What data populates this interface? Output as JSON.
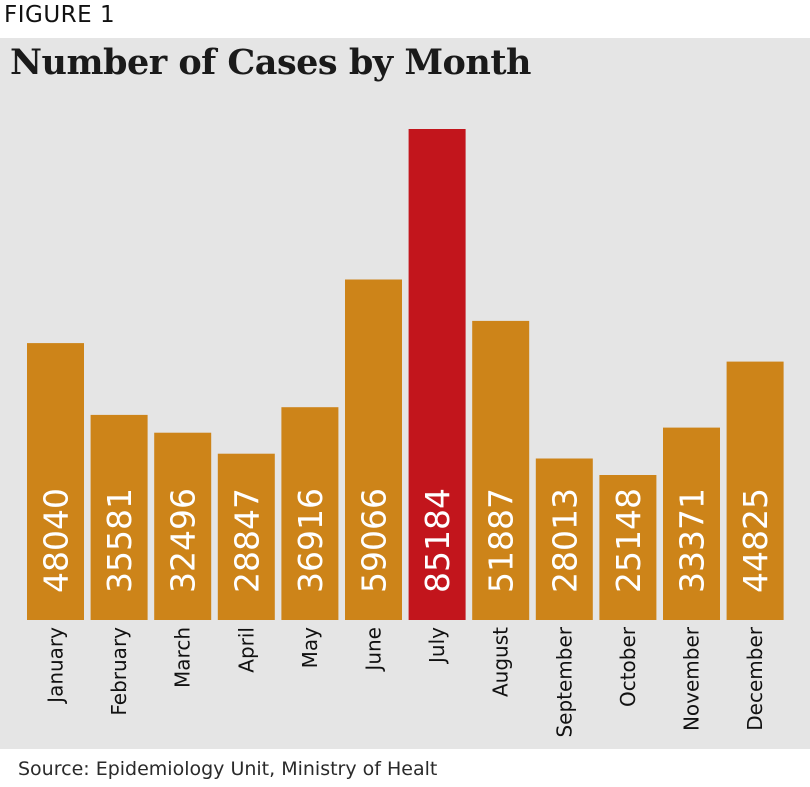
{
  "figure_label": "FIGURE 1",
  "source": "Source: Epidemiology Unit, Ministry of Healt",
  "colors": {
    "bar": "#cd8419",
    "highlight": "#c2151c",
    "panel_background": "#e5e5e5",
    "value_label": "#ffffff"
  },
  "chart_data": {
    "type": "bar",
    "title": "Number of Cases by Month",
    "xlabel": "",
    "ylabel": "",
    "categories": [
      "January",
      "February",
      "March",
      "April",
      "May",
      "June",
      "July",
      "August",
      "September",
      "October",
      "November",
      "December"
    ],
    "values": [
      48040,
      35581,
      32496,
      28847,
      36916,
      59066,
      85184,
      51887,
      28013,
      25148,
      33371,
      44825
    ],
    "highlighted_category": "July",
    "ylim": [
      0,
      85184
    ],
    "grid": false,
    "legend": "none",
    "value_labels": "inside bars, rotated vertical"
  }
}
